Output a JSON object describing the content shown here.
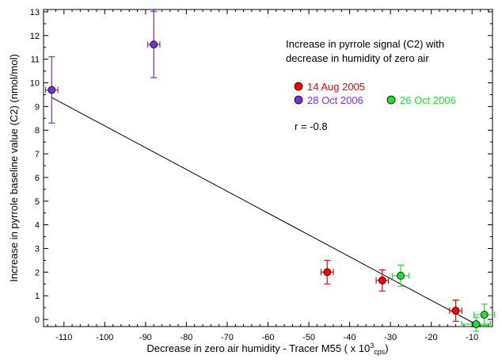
{
  "chart_data": {
    "type": "scatter",
    "title_lines": [
      "Increase in pyrrole signal (C2)  with",
      "decrease in humidity of zero air"
    ],
    "annotation": "r = -0.8",
    "xlabel": "Decrease in zero air humidity - Tracer M55 ( x 10",
    "xlabel_sup": "3",
    "xlabel_sub": "cps",
    "xlabel_close": ")",
    "ylabel": "Increase in pyrrole baseline value (C2) (nmol/mol)",
    "xlim": [
      -115,
      -5
    ],
    "ylim": [
      -0.3,
      13.1
    ],
    "x_ticks": [
      -110,
      -100,
      -90,
      -80,
      -70,
      -60,
      -50,
      -40,
      -30,
      -20,
      -10
    ],
    "x_tick_labels": [
      "-110",
      "-100",
      "-90",
      "-80",
      "-70",
      "-60",
      "-50",
      "-40",
      "-30",
      "-20",
      "-10"
    ],
    "y_ticks": [
      0,
      1,
      2,
      3,
      4,
      5,
      6,
      7,
      8,
      9,
      10,
      11,
      12,
      13
    ],
    "y_tick_labels": [
      "0",
      "1",
      "2",
      "3",
      "4",
      "5",
      "6",
      "7",
      "8",
      "9",
      "10",
      "11",
      "12",
      "13"
    ],
    "series": [
      {
        "name": "14 Aug 2005",
        "color": "#ff0000",
        "points": [
          {
            "x": -45.5,
            "y": 2.0,
            "xerr": 1.5,
            "yerr": 0.5
          },
          {
            "x": -32.0,
            "y": 1.65,
            "xerr": 1.5,
            "yerr": 0.45
          },
          {
            "x": -14.0,
            "y": 0.37,
            "xerr": 1.5,
            "yerr": 0.45
          }
        ]
      },
      {
        "name": "28 Oct 2006",
        "color": "#7b2fd0",
        "points": [
          {
            "x": -113.0,
            "y": 9.7,
            "xerr": 1.5,
            "yerr": 1.4
          },
          {
            "x": -88.0,
            "y": 11.62,
            "xerr": 1.5,
            "yerr": 1.4
          }
        ]
      },
      {
        "name": "26 Oct 2006",
        "color": "#22dd33",
        "points": [
          {
            "x": -27.5,
            "y": 1.85,
            "xerr": 2.0,
            "yerr": 0.45
          },
          {
            "x": -9.0,
            "y": -0.2,
            "xerr": 3.5,
            "yerr": 0.3
          },
          {
            "x": -7.0,
            "y": 0.2,
            "xerr": 2.5,
            "yerr": 0.45
          }
        ]
      }
    ],
    "fit_line": {
      "x": [
        -113.0,
        -8.0
      ],
      "y": [
        9.38,
        -0.3
      ],
      "color": "#000000"
    },
    "legend": [
      {
        "label": "14 Aug 2005",
        "color": "#ff0000",
        "row": 0,
        "col": 0
      },
      {
        "label": "28 Oct 2006",
        "color": "#7b2fd0",
        "row": 1,
        "col": 0
      },
      {
        "label": "26 Oct 2006",
        "color": "#22dd33",
        "row": 1,
        "col": 1
      }
    ],
    "grid": false
  }
}
